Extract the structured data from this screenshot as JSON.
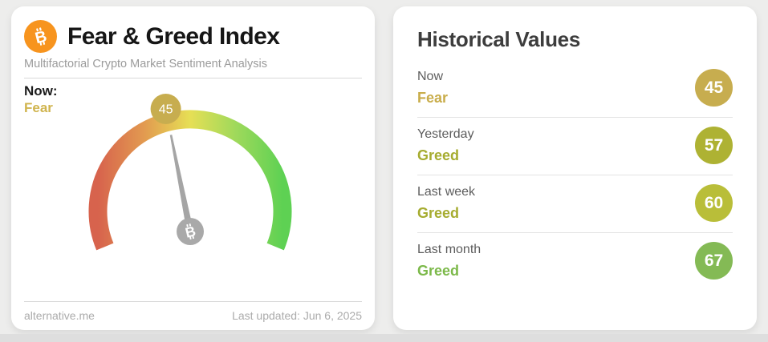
{
  "theme": {
    "page_bg": "#ededec",
    "card_bg": "#ffffff",
    "bitcoin_orange": "#f7941e",
    "needle_gray": "#a5a5a5",
    "gauge_gradient": [
      "#d7634d",
      "#e29a50",
      "#e6df55",
      "#9ed95b",
      "#5ed153"
    ]
  },
  "gauge_card": {
    "title": "Fear & Greed Index",
    "subtitle": "Multifactorial Crypto Market Sentiment Analysis",
    "now_label": "Now:",
    "now_classification": "Fear",
    "now_classification_color": "#d0b44e",
    "gauge_value": "45",
    "gauge_badge_color": "#c7ad4f",
    "footer_source": "alternative.me",
    "footer_updated": "Last updated: Jun 6, 2025"
  },
  "historical_card": {
    "title": "Historical Values",
    "rows": [
      {
        "label": "Now",
        "classification": "Fear",
        "value": "45",
        "badge_color": "#c7ad4f",
        "text_color": "#c9ad4b"
      },
      {
        "label": "Yesterday",
        "classification": "Greed",
        "value": "57",
        "badge_color": "#aeb233",
        "text_color": "#a6ac30"
      },
      {
        "label": "Last week",
        "classification": "Greed",
        "value": "60",
        "badge_color": "#b9be39",
        "text_color": "#a6ac30"
      },
      {
        "label": "Last month",
        "classification": "Greed",
        "value": "67",
        "badge_color": "#84ba55",
        "text_color": "#7cb94a"
      }
    ]
  },
  "chart_data": {
    "type": "gauge",
    "title": "Fear & Greed Index",
    "value": 45,
    "min": 0,
    "max": 100,
    "classification": "Fear",
    "scale": "red (0, extreme fear) through yellow (50) to green (100, extreme greed), ~225-degree arc",
    "historical": [
      {
        "label": "Now",
        "classification": "Fear",
        "value": 45
      },
      {
        "label": "Yesterday",
        "classification": "Greed",
        "value": 57
      },
      {
        "label": "Last week",
        "classification": "Greed",
        "value": 60
      },
      {
        "label": "Last month",
        "classification": "Greed",
        "value": 67
      }
    ],
    "source": "alternative.me",
    "last_updated": "Jun 6, 2025"
  }
}
